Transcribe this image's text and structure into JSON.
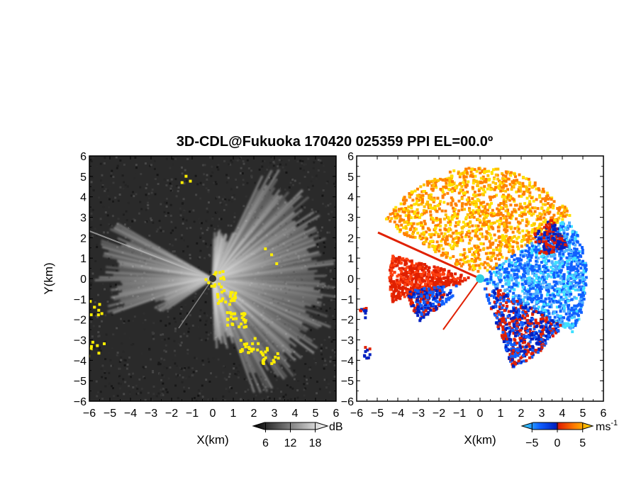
{
  "chart_data": [
    {
      "type": "heatmap",
      "title": "3D-CDL@Fukuoka 170420 025359 PPI EL=00.0º",
      "xlabel": "X(km)",
      "ylabel": "Y(km)",
      "xlim": [
        -6,
        6
      ],
      "ylim": [
        -6,
        6
      ],
      "x_ticks": [
        "-6",
        "-5",
        "-4",
        "-3",
        "-2",
        "-1",
        "0",
        "1",
        "2",
        "3",
        "4",
        "5",
        "6"
      ],
      "y_ticks": [
        "6",
        "5",
        "4",
        "3",
        "2",
        "1",
        "0",
        "-1",
        "-2",
        "-3",
        "-4",
        "-5",
        "-6"
      ],
      "colorbar": {
        "unit": "dB",
        "ticks": [
          "6",
          "12",
          "18"
        ],
        "range": [
          3,
          21
        ],
        "colors": [
          "#000000",
          "#ffffff"
        ]
      },
      "background_color": "#2a2a2a",
      "highlight_color": "#ffee00",
      "description_values": {
        "grid": false
      }
    },
    {
      "type": "heatmap",
      "xlabel": "X(km)",
      "xlim": [
        -6,
        6
      ],
      "ylim": [
        -6,
        6
      ],
      "x_ticks": [
        "-6",
        "-5",
        "-4",
        "-3",
        "-2",
        "-1",
        "0",
        "1",
        "2",
        "3",
        "4",
        "5",
        "6"
      ],
      "y_ticks": [
        "6",
        "5",
        "4",
        "3",
        "2",
        "1",
        "0",
        "-1",
        "-2",
        "-3",
        "-4",
        "-5",
        "-6"
      ],
      "colorbar": {
        "unit": "ms",
        "unit_exponent": "-1",
        "ticks": [
          "-5",
          "0",
          "5"
        ],
        "range": [
          -7,
          7
        ],
        "colors": [
          "#40e0ff",
          "#1060ff",
          "#0020c0",
          "#e02000",
          "#ff8000",
          "#ffe000"
        ]
      },
      "background_color": "#ffffff",
      "radar_site_color": "#30d0e0"
    }
  ]
}
